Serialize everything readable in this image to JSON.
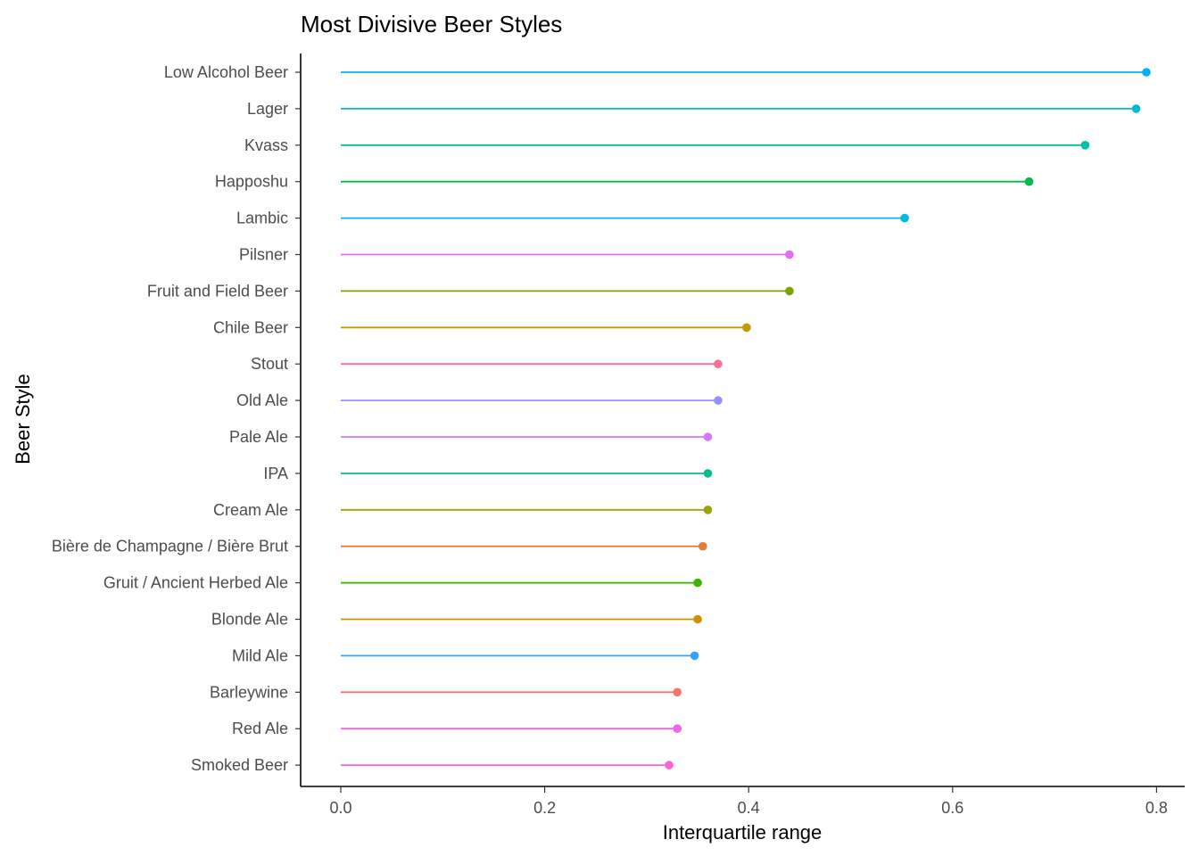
{
  "chart_data": {
    "type": "lollipop",
    "title": "Most Divisive Beer Styles",
    "xlabel": "Interquartile range",
    "ylabel": "Beer Style",
    "xlim": [
      0,
      0.8
    ],
    "xticks": [
      "0.0",
      "0.2",
      "0.4",
      "0.6",
      "0.8"
    ],
    "xtick_values": [
      0,
      0.2,
      0.4,
      0.6,
      0.8
    ],
    "grid": false,
    "legend": "none",
    "categories": [
      "Low Alcohol Beer",
      "Lager",
      "Kvass",
      "Happoshu",
      "Lambic",
      "Pilsner",
      "Fruit and Field Beer",
      "Chile Beer",
      "Stout",
      "Old Ale",
      "Pale Ale",
      "IPA",
      "Cream Ale",
      "Bière de Champagne / Bière Brut",
      "Gruit / Ancient Herbed Ale",
      "Blonde Ale",
      "Mild Ale",
      "Barleywine",
      "Red Ale",
      "Smoked Beer"
    ],
    "values": [
      0.79,
      0.78,
      0.73,
      0.675,
      0.553,
      0.44,
      0.44,
      0.398,
      0.37,
      0.37,
      0.36,
      0.36,
      0.36,
      0.355,
      0.35,
      0.35,
      0.347,
      0.33,
      0.33,
      0.322
    ],
    "colors": [
      "#00b4ef",
      "#00bbd1",
      "#00c0a8",
      "#00ba4d",
      "#00bae0",
      "#e76bf3",
      "#7ca200",
      "#c49a00",
      "#fc6f97",
      "#9590ff",
      "#d376ff",
      "#00c08b",
      "#9aa500",
      "#e17e3a",
      "#39b600",
      "#d19000",
      "#35a2fe",
      "#f8766d",
      "#f066ea",
      "#fb61d7"
    ]
  }
}
